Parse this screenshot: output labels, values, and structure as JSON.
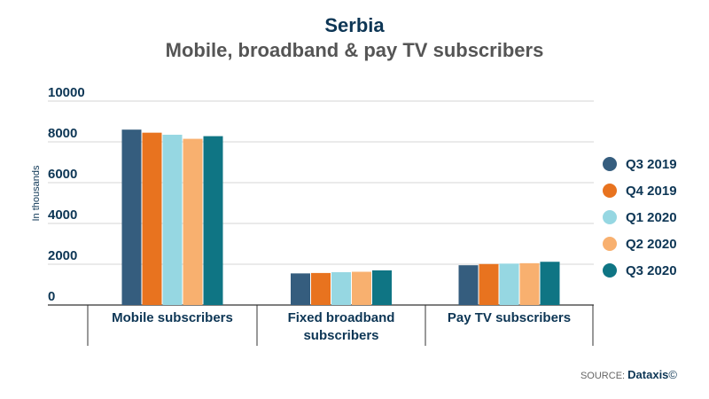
{
  "chart_data": {
    "type": "bar",
    "title": "Serbia",
    "subtitle": "Mobile, broadband & pay TV subscribers",
    "ylabel": "In thousands",
    "xlabel": "",
    "ylim": [
      0,
      10000
    ],
    "yticks": [
      0,
      2000,
      4000,
      6000,
      8000,
      10000
    ],
    "grid": true,
    "legend_position": "right",
    "categories": [
      "Mobile subscribers",
      "Fixed broadband subscribers",
      "Pay TV subscribers"
    ],
    "category_lines": [
      [
        "Mobile subscribers"
      ],
      [
        "Fixed broadband",
        "subscribers"
      ],
      [
        "Pay TV subscribers"
      ]
    ],
    "series": [
      {
        "name": "Q3 2019",
        "color": "#355d7e",
        "values": [
          8600,
          1550,
          1950
        ]
      },
      {
        "name": "Q4 2019",
        "color": "#e8731f",
        "values": [
          8450,
          1570,
          2010
        ]
      },
      {
        "name": "Q1 2020",
        "color": "#96d7e2",
        "values": [
          8350,
          1610,
          2030
        ]
      },
      {
        "name": "Q2 2020",
        "color": "#f8b06f",
        "values": [
          8150,
          1630,
          2050
        ]
      },
      {
        "name": "Q3 2020",
        "color": "#0f7584",
        "values": [
          8280,
          1700,
          2120
        ]
      }
    ]
  },
  "footer": {
    "source_label": "SOURCE:",
    "source_name": "Dataxis",
    "source_mark": "©"
  }
}
